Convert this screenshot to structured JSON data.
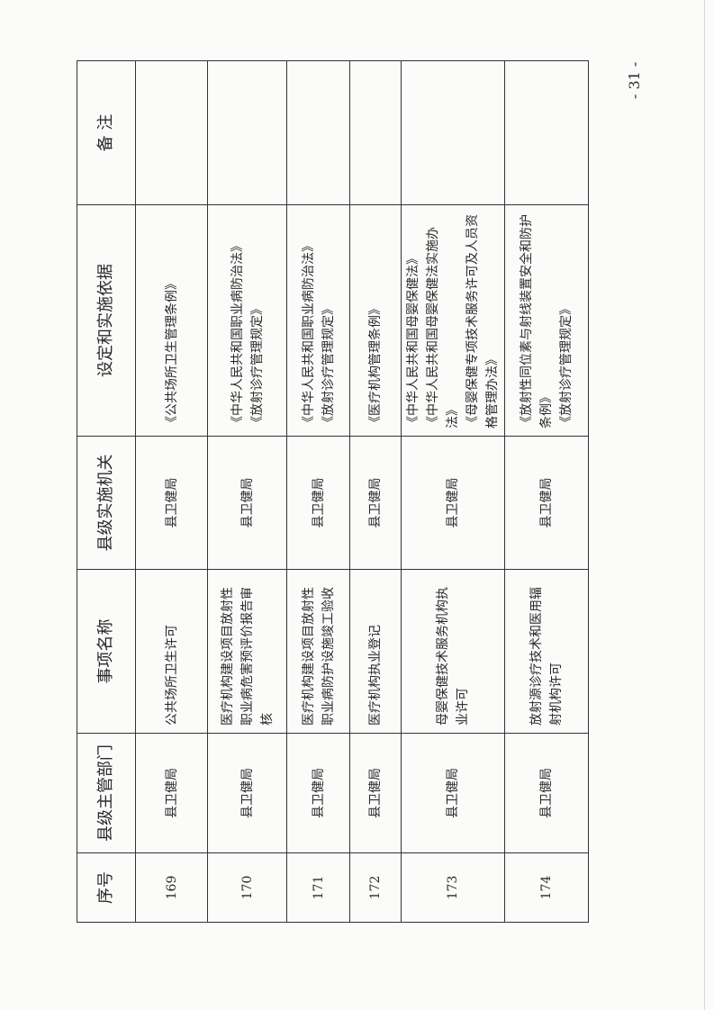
{
  "page_number": "- 31 -",
  "table": {
    "headers": [
      "序号",
      "县级主管部门",
      "事项名称",
      "县级实施机关",
      "设定和实施依据",
      "备 注"
    ],
    "rows": [
      {
        "no": "169",
        "dept": "县卫健局",
        "item": "公共场所卫生许可",
        "agency": "县卫健局",
        "basis": [
          "《公共场所卫生管理条例》"
        ],
        "note": ""
      },
      {
        "no": "170",
        "dept": "县卫健局",
        "item": "医疗机构建设项目放射性职业病危害预评价报告审核",
        "agency": "县卫健局",
        "basis": [
          "《中华人民共和国职业病防治法》",
          "《放射诊疗管理规定》"
        ],
        "note": ""
      },
      {
        "no": "171",
        "dept": "县卫健局",
        "item": "医疗机构建设项目放射性职业病防护设施竣工验收",
        "agency": "县卫健局",
        "basis": [
          "《中华人民共和国职业病防治法》",
          "《放射诊疗管理规定》"
        ],
        "note": ""
      },
      {
        "no": "172",
        "dept": "县卫健局",
        "item": "医疗机构执业登记",
        "agency": "县卫健局",
        "basis": [
          "《医疗机构管理条例》"
        ],
        "note": ""
      },
      {
        "no": "173",
        "dept": "县卫健局",
        "item": "母婴保健技术服务机构执业许可",
        "agency": "县卫健局",
        "basis": [
          "《中华人民共和国母婴保健法》",
          "《中华人民共和国母婴保健法实施办法》",
          "《母婴保健专项技术服务许可及人员资格管理办法》"
        ],
        "note": ""
      },
      {
        "no": "174",
        "dept": "县卫健局",
        "item": "放射源诊疗技术和医用辐射机构许可",
        "agency": "县卫健局",
        "basis": [
          "《放射性同位素与射线装置安全和防护条例》",
          "《放射诊疗管理规定》"
        ],
        "note": ""
      }
    ]
  }
}
